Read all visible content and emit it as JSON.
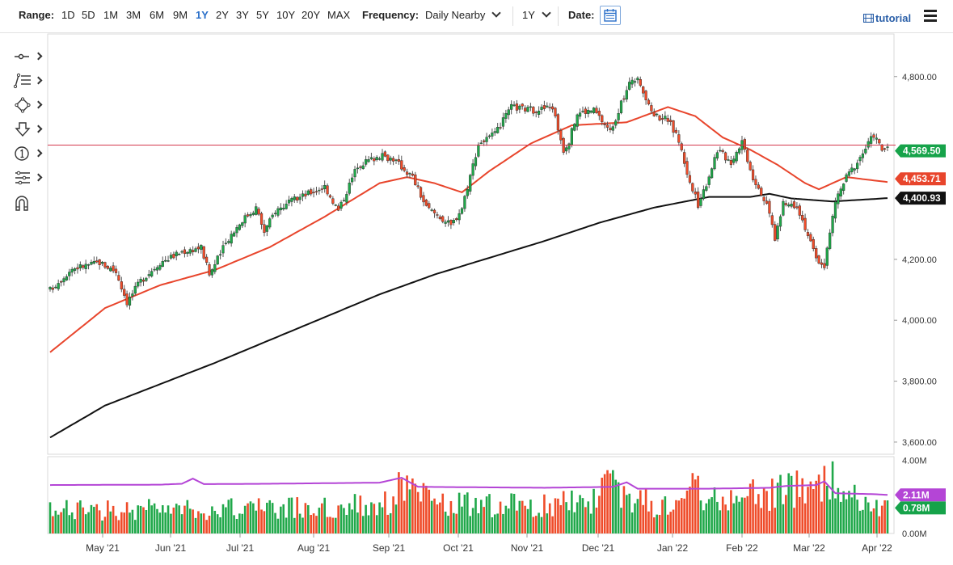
{
  "toolbar": {
    "range_label": "Range:",
    "ranges": [
      "1D",
      "5D",
      "1M",
      "3M",
      "6M",
      "9M",
      "1Y",
      "2Y",
      "3Y",
      "5Y",
      "10Y",
      "20Y",
      "MAX"
    ],
    "active_range": "1Y",
    "frequency_label": "Frequency:",
    "frequency_value": "Daily Nearby",
    "period_value": "1Y",
    "date_label": "Date:",
    "tutorial_label": "tutorial"
  },
  "icons": [
    "line-tool-icon",
    "fib-tool-icon",
    "shape-tool-icon",
    "arrow-down-tool-icon",
    "annotation-tool-icon",
    "pattern-tool-icon",
    "magnet-icon",
    "calendar-icon",
    "menu-icon",
    "film-icon"
  ],
  "colors": {
    "up": "#20a84a",
    "down": "#ef4c2a",
    "ma50": "#e8452c",
    "ma200": "#111111",
    "crosshair": "#d4374d",
    "volume_avg": "#b445d6",
    "last_price_label": "#16a34a"
  },
  "chart_data": {
    "type": "candlestick",
    "x_ticks": [
      "May '21",
      "Jun '21",
      "Jul '21",
      "Aug '21",
      "Sep '21",
      "Oct '21",
      "Nov '21",
      "Dec '21",
      "Jan '22",
      "Feb '22",
      "Mar '22",
      "Apr '22"
    ],
    "price_axis": {
      "ticks": [
        "4,800.00",
        "4,200.00",
        "4,000.00",
        "3,800.00",
        "3,600.00"
      ],
      "tick_values": [
        4800,
        4200,
        4000,
        3800,
        3600
      ],
      "ylim": [
        3560,
        4940
      ]
    },
    "price_labels": {
      "last": "4,569.50",
      "ma50": "4,453.71",
      "ma200": "4,400.93"
    },
    "crosshair_value": 4575,
    "volume_axis": {
      "ticks": [
        "4.00M",
        "0.00M"
      ],
      "tick_values": [
        4.0,
        0.0
      ],
      "ylim": [
        0,
        4.2
      ]
    },
    "volume_labels": {
      "avg": "2.11M",
      "last": "0.78M"
    },
    "close_keypoints": [
      [
        0,
        4100
      ],
      [
        8,
        4170
      ],
      [
        18,
        4190
      ],
      [
        24,
        4160
      ],
      [
        28,
        4060
      ],
      [
        33,
        4130
      ],
      [
        40,
        4190
      ],
      [
        48,
        4225
      ],
      [
        55,
        4240
      ],
      [
        58,
        4150
      ],
      [
        65,
        4270
      ],
      [
        70,
        4330
      ],
      [
        75,
        4370
      ],
      [
        78,
        4290
      ],
      [
        82,
        4360
      ],
      [
        90,
        4400
      ],
      [
        100,
        4440
      ],
      [
        105,
        4360
      ],
      [
        112,
        4510
      ],
      [
        120,
        4540
      ],
      [
        125,
        4530
      ],
      [
        132,
        4470
      ],
      [
        137,
        4370
      ],
      [
        142,
        4340
      ],
      [
        146,
        4310
      ],
      [
        150,
        4370
      ],
      [
        156,
        4580
      ],
      [
        162,
        4610
      ],
      [
        168,
        4700
      ],
      [
        176,
        4690
      ],
      [
        183,
        4700
      ],
      [
        187,
        4560
      ],
      [
        189,
        4590
      ],
      [
        192,
        4680
      ],
      [
        198,
        4690
      ],
      [
        204,
        4620
      ],
      [
        208,
        4710
      ],
      [
        212,
        4795
      ],
      [
        215,
        4780
      ],
      [
        218,
        4700
      ],
      [
        221,
        4670
      ],
      [
        225,
        4660
      ],
      [
        229,
        4590
      ],
      [
        233,
        4450
      ],
      [
        236,
        4380
      ],
      [
        239,
        4450
      ],
      [
        243,
        4560
      ],
      [
        248,
        4520
      ],
      [
        252,
        4590
      ],
      [
        256,
        4470
      ],
      [
        259,
        4420
      ],
      [
        262,
        4350
      ],
      [
        264,
        4270
      ],
      [
        267,
        4380
      ],
      [
        272,
        4380
      ],
      [
        276,
        4280
      ],
      [
        279,
        4200
      ],
      [
        282,
        4180
      ],
      [
        286,
        4390
      ],
      [
        290,
        4470
      ],
      [
        294,
        4520
      ],
      [
        298,
        4580
      ],
      [
        300,
        4610
      ],
      [
        303,
        4560
      ],
      [
        305,
        4569.5
      ]
    ],
    "ma50_keypoints": [
      [
        0,
        3895
      ],
      [
        20,
        4040
      ],
      [
        40,
        4115
      ],
      [
        60,
        4165
      ],
      [
        80,
        4240
      ],
      [
        100,
        4340
      ],
      [
        120,
        4450
      ],
      [
        130,
        4470
      ],
      [
        140,
        4450
      ],
      [
        150,
        4420
      ],
      [
        160,
        4490
      ],
      [
        175,
        4580
      ],
      [
        190,
        4640
      ],
      [
        210,
        4650
      ],
      [
        225,
        4700
      ],
      [
        235,
        4670
      ],
      [
        245,
        4600
      ],
      [
        255,
        4560
      ],
      [
        265,
        4510
      ],
      [
        275,
        4450
      ],
      [
        280,
        4430
      ],
      [
        290,
        4470
      ],
      [
        305,
        4453.71
      ]
    ],
    "ma200_keypoints": [
      [
        0,
        3615
      ],
      [
        20,
        3720
      ],
      [
        40,
        3790
      ],
      [
        60,
        3860
      ],
      [
        80,
        3935
      ],
      [
        100,
        4010
      ],
      [
        120,
        4085
      ],
      [
        140,
        4150
      ],
      [
        160,
        4205
      ],
      [
        180,
        4260
      ],
      [
        200,
        4320
      ],
      [
        220,
        4370
      ],
      [
        240,
        4405
      ],
      [
        255,
        4405
      ],
      [
        262,
        4415
      ],
      [
        270,
        4400
      ],
      [
        285,
        4390
      ],
      [
        305,
        4400.93
      ]
    ],
    "volume_profile": [
      [
        0,
        1.25
      ],
      [
        30,
        1.3
      ],
      [
        60,
        1.35
      ],
      [
        100,
        1.4
      ],
      [
        125,
        1.7
      ],
      [
        128,
        2.9
      ],
      [
        135,
        2.0
      ],
      [
        140,
        1.6
      ],
      [
        180,
        1.5
      ],
      [
        195,
        1.8
      ],
      [
        205,
        2.6
      ],
      [
        212,
        1.9
      ],
      [
        222,
        1.5
      ],
      [
        235,
        2.4
      ],
      [
        245,
        1.9
      ],
      [
        260,
        2.2
      ],
      [
        280,
        2.5
      ],
      [
        283,
        3.2
      ],
      [
        290,
        2.0
      ],
      [
        305,
        1.3
      ]
    ],
    "volume_avg_keypoints": [
      [
        0,
        2.65
      ],
      [
        40,
        2.67
      ],
      [
        48,
        2.72
      ],
      [
        52,
        3.0
      ],
      [
        56,
        2.7
      ],
      [
        80,
        2.72
      ],
      [
        120,
        2.78
      ],
      [
        128,
        3.05
      ],
      [
        134,
        2.55
      ],
      [
        180,
        2.5
      ],
      [
        205,
        2.55
      ],
      [
        210,
        2.8
      ],
      [
        214,
        2.45
      ],
      [
        240,
        2.45
      ],
      [
        262,
        2.5
      ],
      [
        268,
        2.6
      ],
      [
        279,
        2.65
      ],
      [
        282,
        2.85
      ],
      [
        286,
        2.2
      ],
      [
        300,
        2.15
      ],
      [
        305,
        2.11
      ]
    ]
  }
}
